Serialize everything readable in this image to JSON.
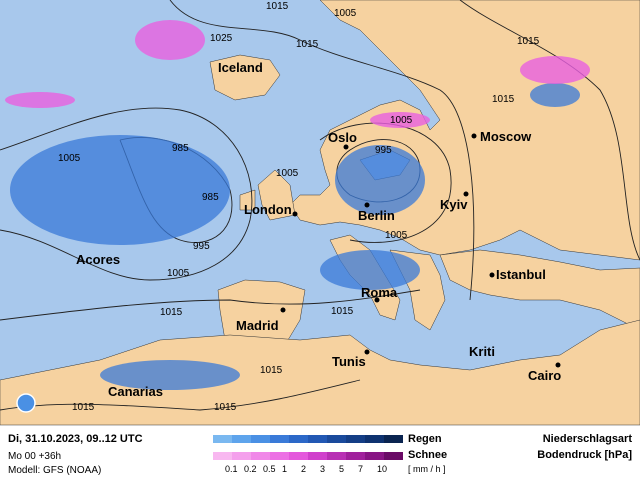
{
  "map": {
    "colors": {
      "sea": "#a8c8ec",
      "land": "#f6d2a0",
      "rain": "#3a7ad8",
      "snow": "#e860e0",
      "isobar": "#222222"
    },
    "cities": [
      {
        "name": "Iceland"
      },
      {
        "name": "Oslo"
      },
      {
        "name": "Moscow"
      },
      {
        "name": "London"
      },
      {
        "name": "Berlin"
      },
      {
        "name": "Kyiv"
      },
      {
        "name": "Acores"
      },
      {
        "name": "Istanbul"
      },
      {
        "name": "Madrid"
      },
      {
        "name": "Roma"
      },
      {
        "name": "Tunis"
      },
      {
        "name": "Kriti"
      },
      {
        "name": "Cairo"
      },
      {
        "name": "Canarias"
      }
    ],
    "isobar_labels": [
      "1015",
      "1005",
      "1025",
      "1015",
      "1015",
      "1015",
      "1005",
      "1005",
      "985",
      "995",
      "1005",
      "985",
      "995",
      "1005",
      "1005",
      "1015",
      "1015",
      "1015",
      "1015",
      "1015"
    ]
  },
  "legend": {
    "datetime": "Di, 31.10.2023, 09..12 UTC",
    "run": "Mo 00 +36h",
    "model": "Modell: GFS (NOAA)",
    "rain_label": "Regen",
    "snow_label": "Schnee",
    "scale": [
      "0.1",
      "0.2",
      "0.5",
      "1",
      "2",
      "3",
      "5",
      "7",
      "10"
    ],
    "unit": "[ mm / h ]",
    "title1": "Niederschlagsart",
    "title2": "Bodendruck [hPa]",
    "rain_colors": [
      "#7ab8f0",
      "#5ea4ec",
      "#4a90e4",
      "#3a7ad8",
      "#2c68c8",
      "#2258b4",
      "#1a4a9c",
      "#143e86",
      "#0e3270",
      "#0a2450"
    ],
    "snow_colors": [
      "#f8b8f0",
      "#f4a0ec",
      "#f088e8",
      "#ec70e4",
      "#e458dc",
      "#d040cc",
      "#b830b4",
      "#a0209c",
      "#881484",
      "#6a0a66"
    ]
  }
}
